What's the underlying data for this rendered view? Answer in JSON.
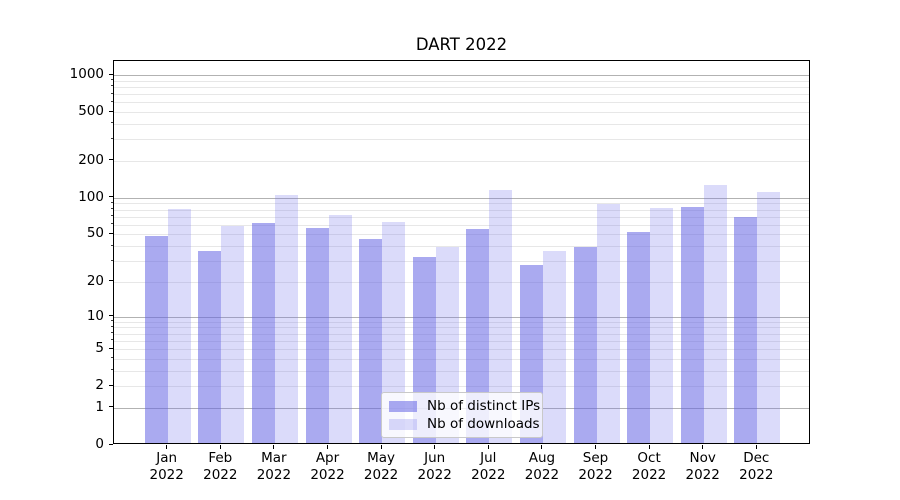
{
  "colors": {
    "bar_distinct_ips": "#6464e48c",
    "bar_downloads": "#7070ec40",
    "grid_major": "#b2b2b2",
    "grid_minor": "#e7e7e7",
    "axis": "#000000",
    "text": "#000000",
    "legend_border": "#c9c9c9",
    "background": "#ffffff"
  },
  "chart_data": {
    "type": "bar",
    "title": "DART 2022",
    "yscale": "log1p (symlog-like: y = log(1+v))",
    "grid": "both",
    "legend_position": "lower center",
    "year": "2022",
    "categories": [
      "Jan",
      "Feb",
      "Mar",
      "Apr",
      "May",
      "Jun",
      "Jul",
      "Aug",
      "Sep",
      "Oct",
      "Nov",
      "Dec"
    ],
    "series": [
      {
        "name": "Nb of distinct IPs",
        "values": [
          47,
          35,
          60,
          54,
          44,
          31,
          53,
          27,
          38,
          50,
          81,
          67
        ]
      },
      {
        "name": "Nb of downloads",
        "values": [
          78,
          57,
          101,
          70,
          61,
          38,
          112,
          35,
          86,
          80,
          123,
          108
        ]
      }
    ],
    "y_ticks": [
      0,
      1,
      2,
      5,
      10,
      20,
      50,
      100,
      200,
      500,
      1000
    ],
    "ylim": [
      0,
      1275
    ],
    "xlabel": "",
    "ylabel": ""
  }
}
